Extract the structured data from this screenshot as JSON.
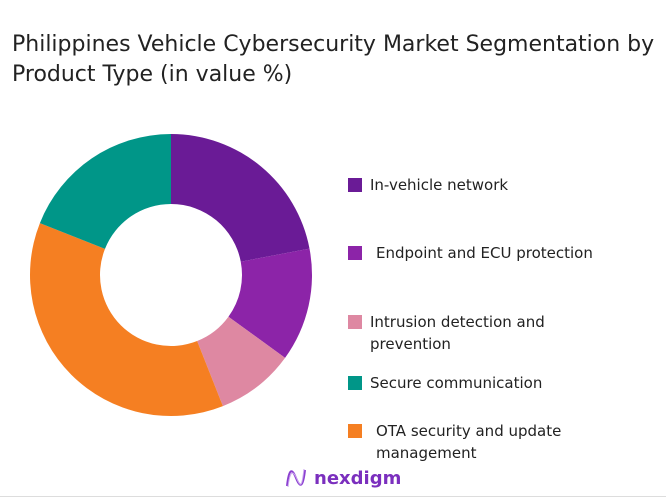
{
  "chart_data": {
    "type": "pie",
    "donut": true,
    "title": "Philippines Vehicle Cybersecurity Market Segmentation by Product Type (in value %)",
    "categories": [
      "In-vehicle network",
      "Endpoint and ECU protection",
      "Intrusion detection and prevention",
      "OTA security and update management",
      "Secure communication"
    ],
    "values": [
      22,
      13,
      9,
      37,
      19
    ],
    "colors": [
      "#6a1b96",
      "#8c24a8",
      "#de88a2",
      "#f57f22",
      "#009688"
    ],
    "legend_order": [
      0,
      1,
      2,
      4,
      3
    ],
    "legend_position": "right"
  },
  "legend": [
    "In-vehicle network",
    "Endpoint and ECU protection",
    "Intrusion detection and prevention",
    "Secure communication",
    "OTA security and update management"
  ],
  "logo": {
    "text": "nexdigm"
  }
}
